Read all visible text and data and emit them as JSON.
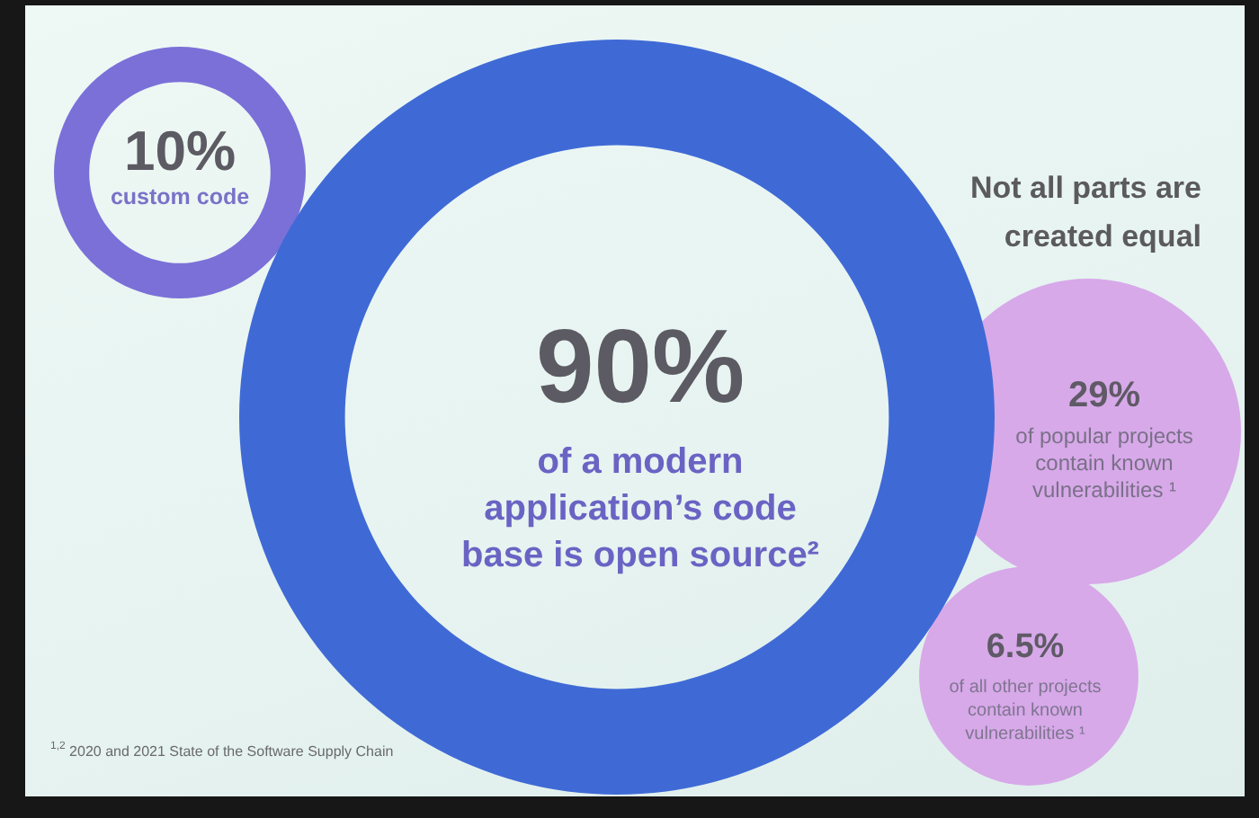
{
  "chart_data": {
    "type": "other",
    "title": "Not all parts are created equal",
    "categories": [
      "custom code",
      "of a modern application’s code base is open source²",
      "of popular projects contain known vulnerabilities ¹",
      "of all other projects contain known vulnerabilities ¹"
    ],
    "values": [
      10,
      90,
      29,
      6.5
    ],
    "value_labels": [
      "10%",
      "90%",
      "29%",
      "6.5%"
    ],
    "colors": [
      "#7b70d8",
      "#3f6ad6",
      "#d7a9e9",
      "#d7a9e9"
    ],
    "annotations": [
      "$^{1,2}$ 2020 and 2021 State of the Software Supply Chain"
    ]
  }
}
